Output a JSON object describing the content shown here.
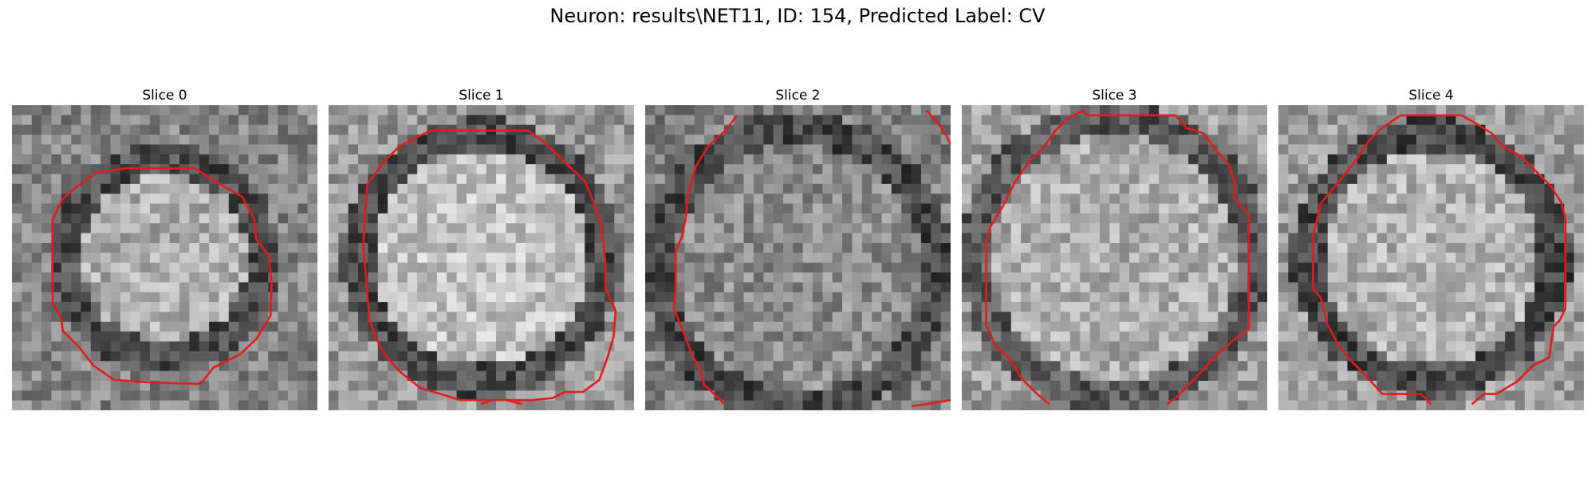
{
  "figure": {
    "title": "Neuron: results\\NET11, ID: 154, Predicted Label: CV",
    "panels": [
      {
        "title": "Slice 0"
      },
      {
        "title": "Slice 1"
      },
      {
        "title": "Slice 2"
      },
      {
        "title": "Slice 3"
      },
      {
        "title": "Slice 4"
      }
    ],
    "contour_color": "#e41a1c",
    "colormap": "gray"
  }
}
